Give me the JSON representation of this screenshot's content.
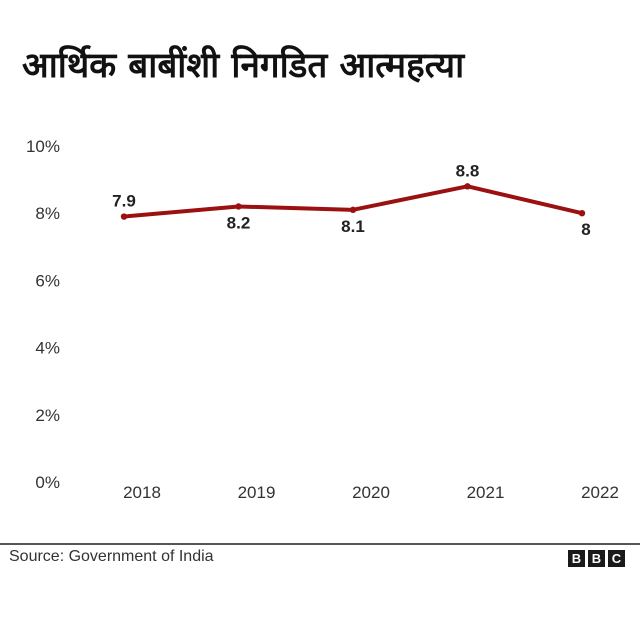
{
  "title": "आर्थिक बाबींशी निगडित आत्महत्या",
  "source": "Source: Government of India",
  "logo_letters": [
    "B",
    "B",
    "C"
  ],
  "colors": {
    "line": "#9b1111",
    "text": "#222222"
  },
  "chart_data": {
    "type": "line",
    "title": "आर्थिक बाबींशी निगडित आत्महत्या",
    "x": [
      "2018",
      "2019",
      "2020",
      "2021",
      "2022"
    ],
    "series": [
      {
        "values": [
          7.9,
          8.2,
          8.1,
          8.8,
          8.0
        ],
        "labels": [
          "7.9",
          "8.2",
          "8.1",
          "8.8",
          "8"
        ],
        "label_position": [
          "above",
          "below",
          "below",
          "above",
          "below"
        ]
      }
    ],
    "ylim": [
      0,
      10
    ],
    "yticks": [
      0,
      2,
      4,
      6,
      8,
      10
    ],
    "ytick_labels": [
      "0%",
      "2%",
      "4%",
      "6%",
      "8%",
      "10%"
    ],
    "xlabel": "",
    "ylabel": "",
    "grid": false,
    "legend": false
  }
}
